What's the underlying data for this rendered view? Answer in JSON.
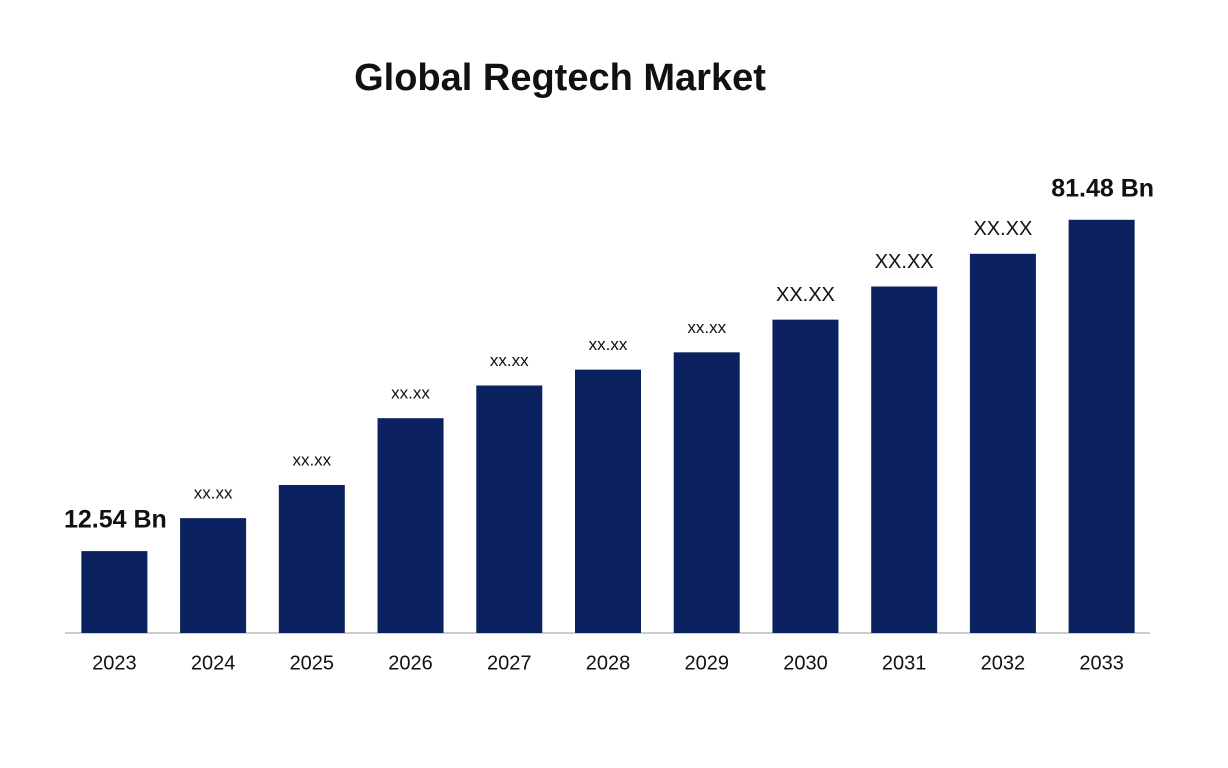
{
  "chart_data": {
    "type": "bar",
    "title": "Global Regtech Market",
    "categories": [
      "2023",
      "2024",
      "2025",
      "2026",
      "2027",
      "2028",
      "2029",
      "2030",
      "2031",
      "2032",
      "2033"
    ],
    "values": [
      12.54,
      19.4,
      26.3,
      40.2,
      47.0,
      50.3,
      53.9,
      60.7,
      67.6,
      74.4,
      81.48
    ],
    "value_labels": [
      "12.54 Bn",
      "xx.xx",
      "xx.xx",
      "xx.xx",
      "xx.xx",
      "xx.xx",
      "xx.xx",
      "XX.XX",
      "XX.XX",
      "XX.XX",
      "81.48 Bn"
    ],
    "color": "#0b2160",
    "ylim": [
      -4.5,
      96
    ]
  }
}
